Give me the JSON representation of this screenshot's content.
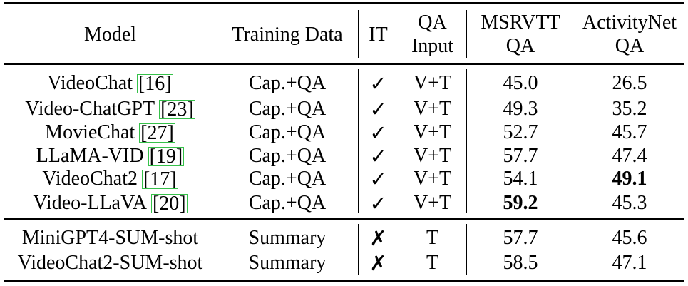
{
  "table": {
    "headers": [
      {
        "lines": [
          "Model"
        ]
      },
      {
        "lines": [
          "Training Data"
        ]
      },
      {
        "lines": [
          "IT"
        ]
      },
      {
        "lines": [
          "QA",
          "Input"
        ]
      },
      {
        "lines": [
          "MSRVTT",
          "QA"
        ]
      },
      {
        "lines": [
          "ActivityNet",
          "QA"
        ]
      }
    ],
    "groups": [
      {
        "rows": [
          {
            "model": "VideoChat",
            "ref": "[16]",
            "training_data": "Cap.+QA",
            "it": "✓",
            "qa_input": "V+T",
            "msrvtt": "45.0",
            "activitynet": "26.5"
          },
          {
            "model": "Video-ChatGPT",
            "ref": "[23]",
            "training_data": "Cap.+QA",
            "it": "✓",
            "qa_input": "V+T",
            "msrvtt": "49.3",
            "activitynet": "35.2"
          },
          {
            "model": "MovieChat",
            "ref": "[27]",
            "training_data": "Cap.+QA",
            "it": "✓",
            "qa_input": "V+T",
            "msrvtt": "52.7",
            "activitynet": "45.7"
          },
          {
            "model": "LLaMA-VID",
            "ref": "[19]",
            "training_data": "Cap.+QA",
            "it": "✓",
            "qa_input": "V+T",
            "msrvtt": "57.7",
            "activitynet": "47.4"
          },
          {
            "model": "VideoChat2",
            "ref": "[17]",
            "training_data": "Cap.+QA",
            "it": "✓",
            "qa_input": "V+T",
            "msrvtt": "54.1",
            "activitynet": "49.1",
            "bold_activitynet": true
          },
          {
            "model": "Video-LLaVA",
            "ref": "[20]",
            "training_data": "Cap.+QA",
            "it": "✓",
            "qa_input": "V+T",
            "msrvtt": "59.2",
            "activitynet": "45.3",
            "bold_msrvtt": true
          }
        ]
      },
      {
        "rows": [
          {
            "model": "MiniGPT4-SUM-shot",
            "ref": "",
            "training_data": "Summary",
            "it": "✗",
            "qa_input": "T",
            "msrvtt": "57.7",
            "activitynet": "45.6"
          },
          {
            "model": "VideoChat2-SUM-shot",
            "ref": "",
            "training_data": "Summary",
            "it": "✗",
            "qa_input": "T",
            "msrvtt": "58.5",
            "activitynet": "47.1"
          }
        ]
      }
    ]
  }
}
